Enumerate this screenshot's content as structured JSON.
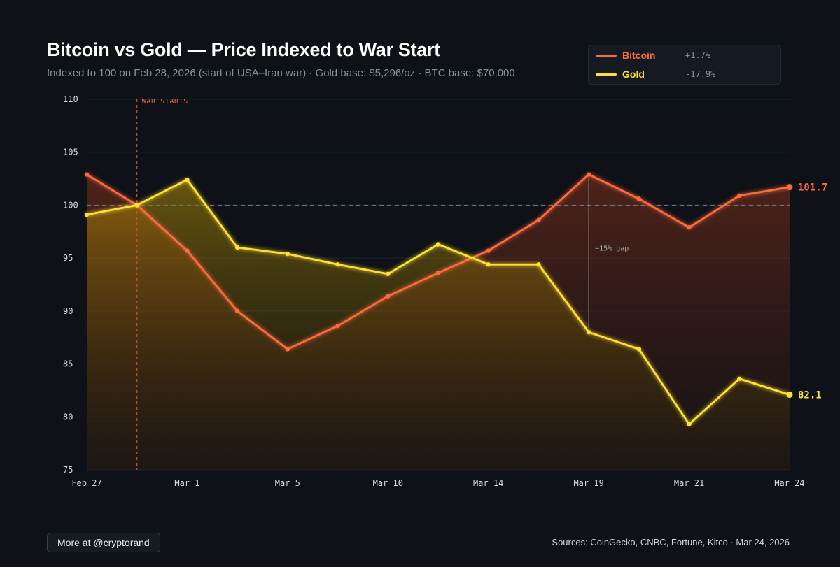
{
  "header": {
    "title": "Bitcoin vs Gold — Price Indexed to War Start",
    "subtitle": "Indexed to 100 on Feb 28, 2026 (start of USA–Iran war) · Gold base: $5,296/oz · BTC base: $70,000"
  },
  "legend": {
    "items": [
      {
        "name": "Bitcoin",
        "change": "+1.7%",
        "color": "#ff6a3d"
      },
      {
        "name": "Gold",
        "change": "-17.9%",
        "color": "#ffe033"
      }
    ]
  },
  "chart_data": {
    "type": "line",
    "title": "Bitcoin vs Gold — Price Indexed to War Start",
    "x_tick_labels": [
      "Feb 27",
      "Mar 1",
      "Mar 5",
      "Mar 10",
      "Mar 14",
      "Mar 19",
      "Mar 21",
      "Mar 24"
    ],
    "y_ticks": [
      75,
      80,
      85,
      90,
      95,
      100,
      105,
      110
    ],
    "ylim": [
      75,
      110
    ],
    "reference_line": 100,
    "grid": true,
    "legend_position": "top-right",
    "series": [
      {
        "name": "Bitcoin",
        "color": "#ff6a3d",
        "values": [
          102.9,
          100.0,
          95.7,
          90.0,
          86.4,
          88.6,
          91.4,
          93.6,
          95.7,
          98.6,
          102.9,
          100.6,
          97.9,
          100.9,
          101.7
        ],
        "end_label": "101.7"
      },
      {
        "name": "Gold",
        "color": "#ffe033",
        "values": [
          99.1,
          100.0,
          102.4,
          96.0,
          95.4,
          94.4,
          93.5,
          96.3,
          94.4,
          94.4,
          88.0,
          86.4,
          79.3,
          83.6,
          82.1
        ],
        "end_label": "82.1"
      }
    ],
    "annotations": {
      "war_start": {
        "label": "WAR STARTS",
        "x_index": 1
      },
      "gap": {
        "label": "~15% gap",
        "x_index": 10
      }
    }
  },
  "footer": {
    "button_label": "More at @cryptorand",
    "sources": "Sources: CoinGecko, CNBC, Fortune, Kitco · Mar 24, 2026"
  }
}
